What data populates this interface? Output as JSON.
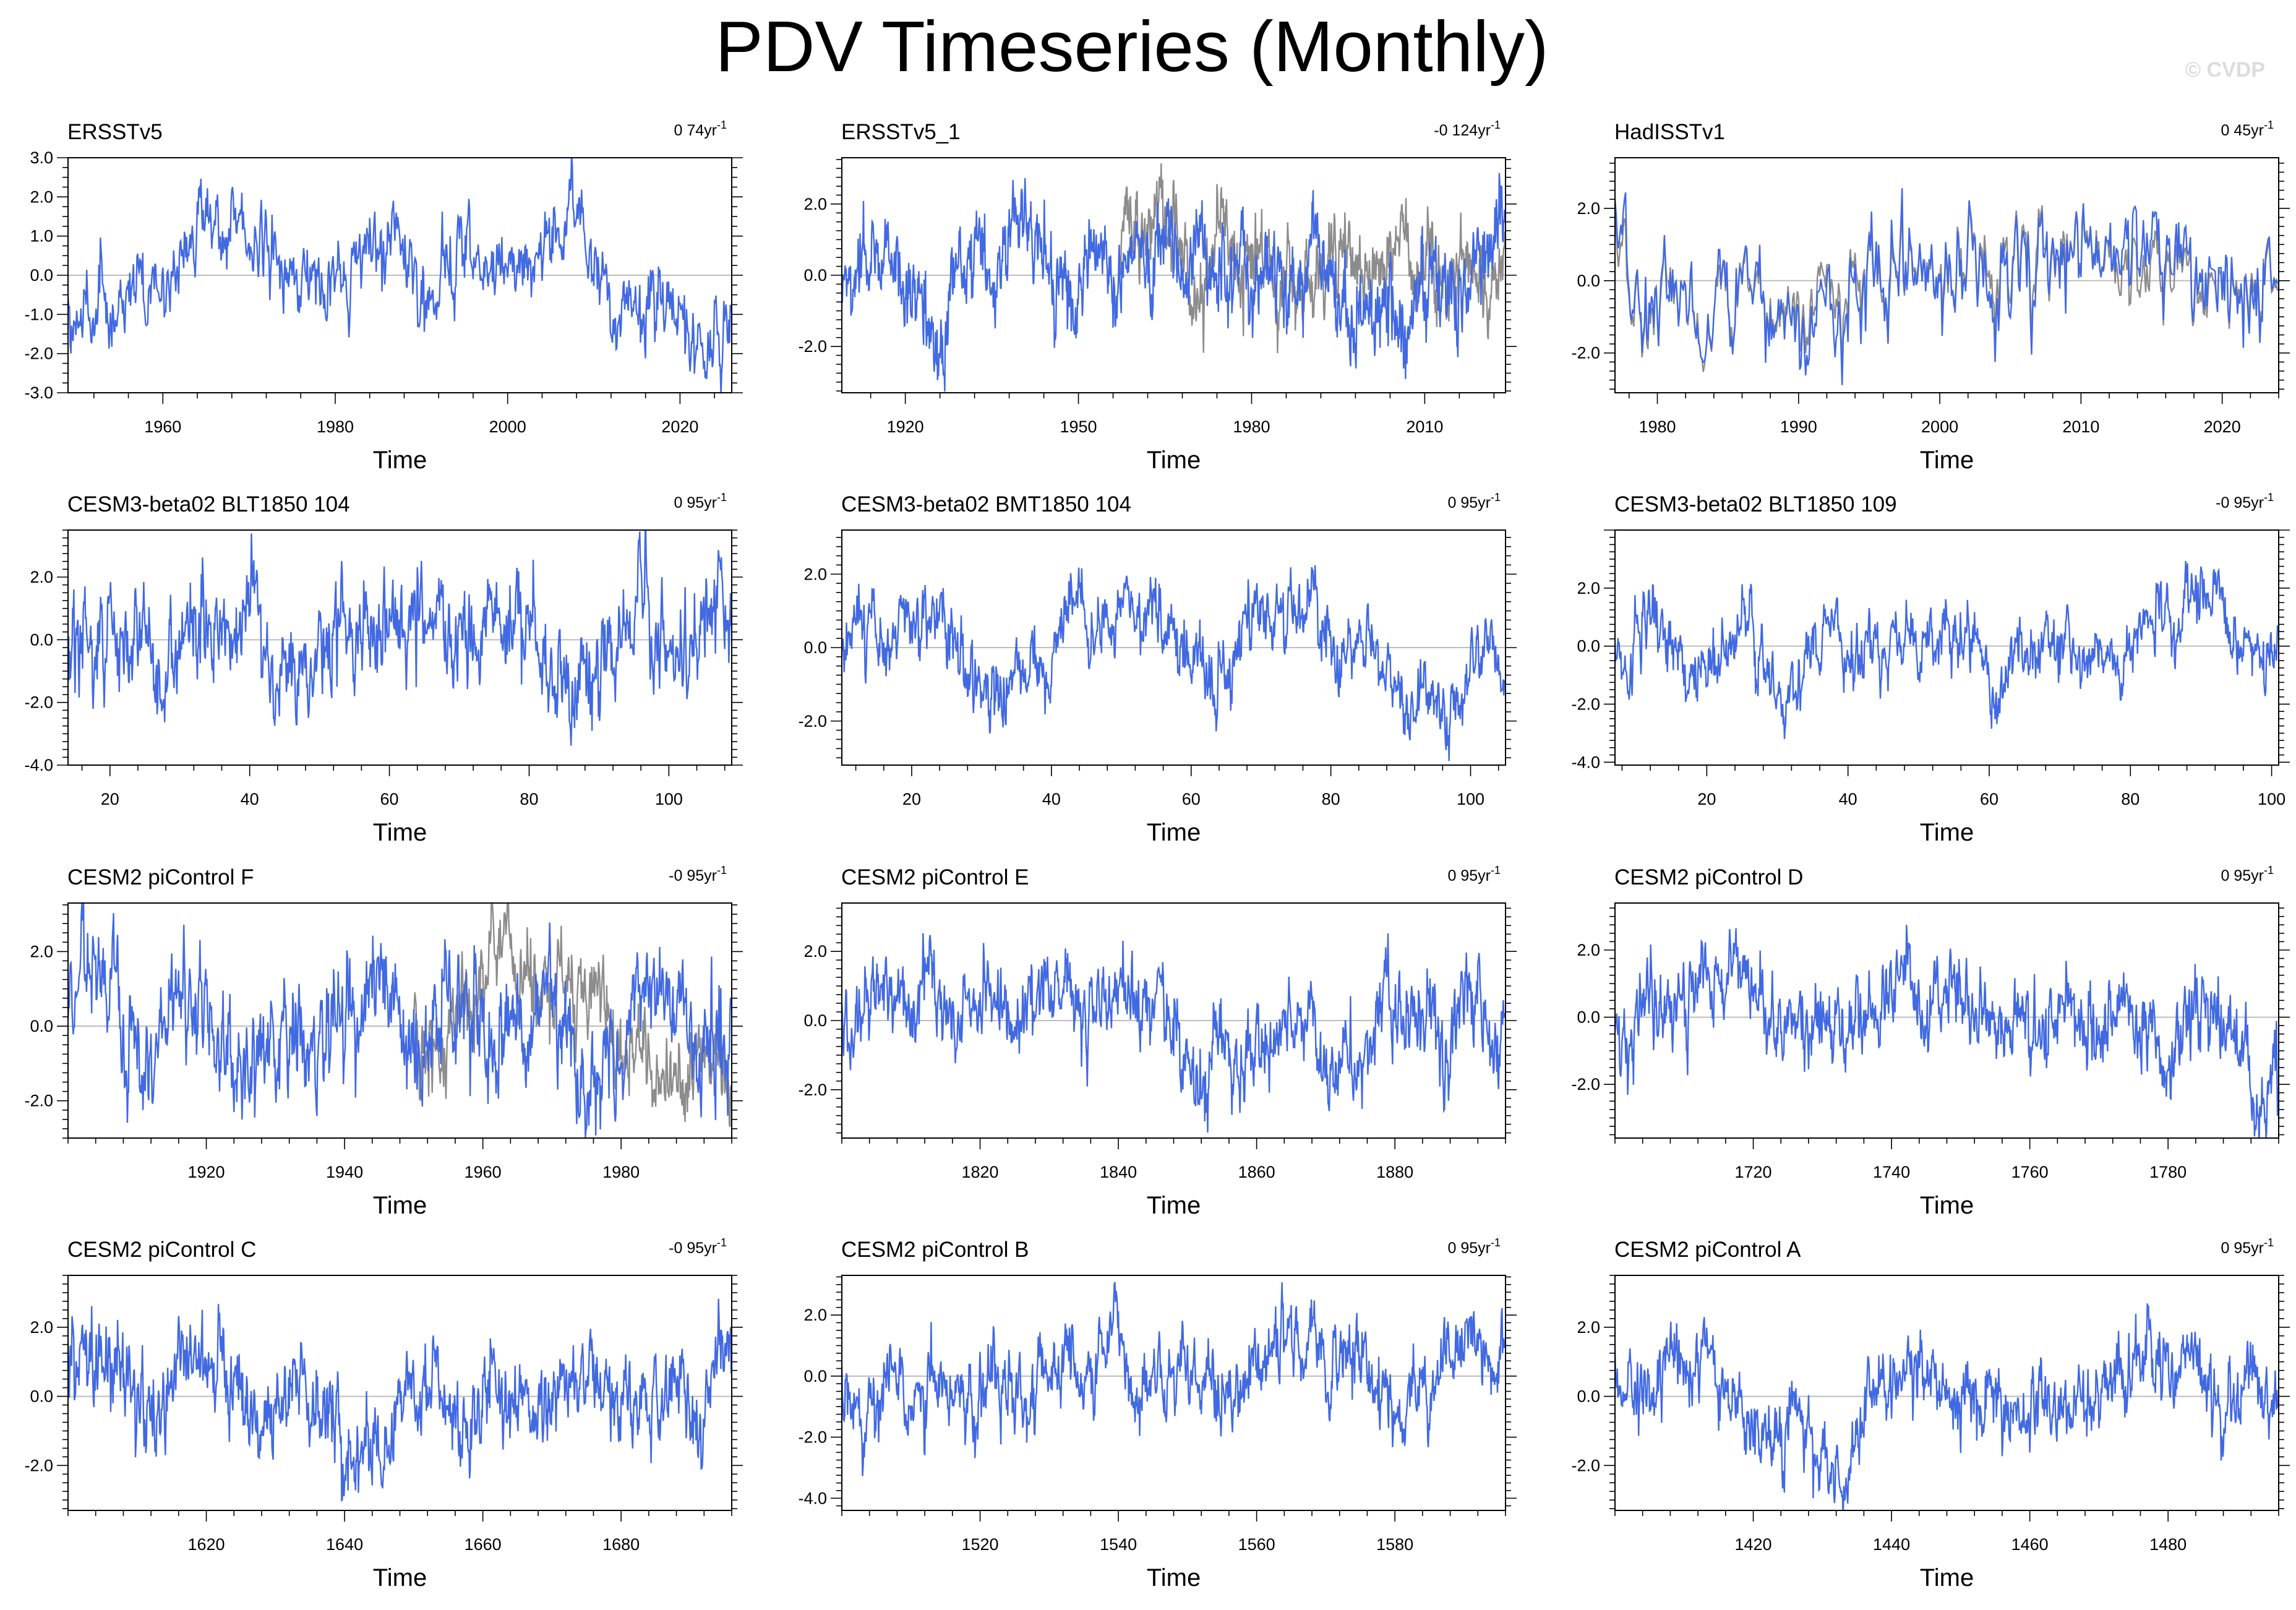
{
  "figure": {
    "title": "PDV Timeseries (Monthly)",
    "credit": "© CVDP",
    "colors": {
      "main_series": "#4169e1",
      "ref_series": "#8c8c8c",
      "zero_line": "#bdbdbd",
      "frame": "#000000"
    }
  },
  "chart_data": [
    {
      "type": "line",
      "title": "ERSSTv5",
      "trend": "0 74yr",
      "xlabel": "Time",
      "xlim": [
        1949,
        2026
      ],
      "ylim": [
        -3,
        3
      ],
      "xticks": [
        1960,
        1980,
        2000,
        2020
      ],
      "xticklabels": [
        "1960",
        "1980",
        "2000",
        "2020"
      ],
      "yticks": [
        -3,
        -2,
        -1,
        0,
        1,
        2,
        3
      ],
      "yticklabels": [
        "-3.0",
        "-2.0",
        "-1.0",
        "0.0",
        "1.0",
        "2.0",
        "3.0"
      ],
      "amplitude": 1.0,
      "ref_series": false,
      "seed": 11
    },
    {
      "type": "line",
      "title": "ERSSTv5_1",
      "trend": "-0 124yr",
      "xlabel": "Time",
      "xlim": [
        1909,
        2024
      ],
      "ylim": [
        -3.3,
        3.3
      ],
      "xticks": [
        1920,
        1950,
        1980,
        2010
      ],
      "xticklabels": [
        "1920",
        "1950",
        "1980",
        "2010"
      ],
      "yticks": [
        -2,
        0,
        2
      ],
      "yticklabels": [
        "-2.0",
        "0.0",
        "2.0"
      ],
      "amplitude": 1.0,
      "ref_series": true,
      "ref_start": 1957,
      "seed": 23
    },
    {
      "type": "line",
      "title": "HadISSTv1",
      "trend": "0 45yr",
      "xlabel": "Time",
      "xlim": [
        1977,
        2024
      ],
      "ylim": [
        -3.1,
        3.4
      ],
      "xticks": [
        1980,
        1990,
        2000,
        2010,
        2020
      ],
      "xticklabels": [
        "1980",
        "1990",
        "2000",
        "2010",
        "2020"
      ],
      "yticks": [
        -2,
        0,
        2
      ],
      "yticklabels": [
        "-2.0",
        "0.0",
        "2.0"
      ],
      "amplitude": 1.0,
      "ref_series": true,
      "ref_start": 1977,
      "seed": 37
    },
    {
      "type": "line",
      "title": "CESM3-beta02 BLT1850 104",
      "trend": "0 95yr",
      "xlabel": "Time",
      "xlim": [
        14,
        109
      ],
      "ylim": [
        -4,
        3.5
      ],
      "xticks": [
        20,
        40,
        60,
        80,
        100
      ],
      "xticklabels": [
        "20",
        "40",
        "60",
        "80",
        "100"
      ],
      "yticks": [
        -4,
        -2,
        0,
        2
      ],
      "yticklabels": [
        "-4.0",
        "-2.0",
        "0.0",
        "2.0"
      ],
      "amplitude": 1.1,
      "ref_series": false,
      "seed": 41
    },
    {
      "type": "line",
      "title": "CESM3-beta02 BMT1850 104",
      "trend": "0 95yr",
      "xlabel": "Time",
      "xlim": [
        10,
        105
      ],
      "ylim": [
        -3.2,
        3.2
      ],
      "xticks": [
        20,
        40,
        60,
        80,
        100
      ],
      "xticklabels": [
        "20",
        "40",
        "60",
        "80",
        "100"
      ],
      "yticks": [
        -2,
        0,
        2
      ],
      "yticklabels": [
        "-2.0",
        "0.0",
        "2.0"
      ],
      "amplitude": 1.0,
      "ref_series": false,
      "seed": 53
    },
    {
      "type": "line",
      "title": "CESM3-beta02 BLT1850 109",
      "trend": "-0 95yr",
      "xlabel": "Time",
      "xlim": [
        7,
        101
      ],
      "ylim": [
        -4.1,
        4
      ],
      "xticks": [
        20,
        40,
        60,
        80,
        100
      ],
      "xticklabels": [
        "20",
        "40",
        "60",
        "80",
        "100"
      ],
      "yticks": [
        -4,
        -2,
        0,
        2
      ],
      "yticklabels": [
        "-4.0",
        "-2.0",
        "0.0",
        "2.0"
      ],
      "amplitude": 1.0,
      "ref_series": false,
      "seed": 67
    },
    {
      "type": "line",
      "title": "CESM2 piControl F",
      "trend": "-0 95yr",
      "xlabel": "Time",
      "xlim": [
        1900,
        1996
      ],
      "ylim": [
        -3,
        3.3
      ],
      "xticks": [
        1920,
        1940,
        1960,
        1980
      ],
      "xticklabels": [
        "1920",
        "1940",
        "1960",
        "1980"
      ],
      "yticks": [
        -2,
        0,
        2
      ],
      "yticklabels": [
        "-2.0",
        "0.0",
        "2.0"
      ],
      "amplitude": 1.1,
      "ref_series": true,
      "ref_start": 1950,
      "seed": 79
    },
    {
      "type": "line",
      "title": "CESM2 piControl E",
      "trend": "0 95yr",
      "xlabel": "Time",
      "xlim": [
        1800,
        1896
      ],
      "ylim": [
        -3.4,
        3.4
      ],
      "xticks": [
        1820,
        1840,
        1860,
        1880
      ],
      "xticklabels": [
        "1820",
        "1840",
        "1860",
        "1880"
      ],
      "yticks": [
        -2,
        0,
        2
      ],
      "yticklabels": [
        "-2.0",
        "0.0",
        "2.0"
      ],
      "amplitude": 1.0,
      "ref_series": false,
      "seed": 83
    },
    {
      "type": "line",
      "title": "CESM2 piControl D",
      "trend": "0 95yr",
      "xlabel": "Time",
      "xlim": [
        1700,
        1796
      ],
      "ylim": [
        -3.6,
        3.4
      ],
      "xticks": [
        1720,
        1740,
        1760,
        1780
      ],
      "xticklabels": [
        "1720",
        "1740",
        "1760",
        "1780"
      ],
      "yticks": [
        -2,
        0,
        2
      ],
      "yticklabels": [
        "-2.0",
        "0.0",
        "2.0"
      ],
      "amplitude": 1.0,
      "ref_series": false,
      "seed": 97
    },
    {
      "type": "line",
      "title": "CESM2 piControl C",
      "trend": "-0 95yr",
      "xlabel": "Time",
      "xlim": [
        1600,
        1696
      ],
      "ylim": [
        -3.3,
        3.5
      ],
      "xticks": [
        1620,
        1640,
        1660,
        1680
      ],
      "xticklabels": [
        "1620",
        "1640",
        "1660",
        "1680"
      ],
      "yticks": [
        -2,
        0,
        2
      ],
      "yticklabels": [
        "-2.0",
        "0.0",
        "2.0"
      ],
      "amplitude": 1.0,
      "ref_series": false,
      "seed": 101
    },
    {
      "type": "line",
      "title": "CESM2 piControl B",
      "trend": "0 95yr",
      "xlabel": "Time",
      "xlim": [
        1500,
        1596
      ],
      "ylim": [
        -4.4,
        3.3
      ],
      "xticks": [
        1520,
        1540,
        1560,
        1580
      ],
      "xticklabels": [
        "1520",
        "1540",
        "1560",
        "1580"
      ],
      "yticks": [
        -4,
        -2,
        0,
        2
      ],
      "yticklabels": [
        "-4.0",
        "-2.0",
        "0.0",
        "2.0"
      ],
      "amplitude": 1.0,
      "ref_series": false,
      "seed": 113
    },
    {
      "type": "line",
      "title": "CESM2 piControl A",
      "trend": "0 95yr",
      "xlabel": "Time",
      "xlim": [
        1400,
        1496
      ],
      "ylim": [
        -3.3,
        3.5
      ],
      "xticks": [
        1420,
        1440,
        1460,
        1480
      ],
      "xticklabels": [
        "1420",
        "1440",
        "1460",
        "1480"
      ],
      "yticks": [
        -2,
        0,
        2
      ],
      "yticklabels": [
        "-2.0",
        "0.0",
        "2.0"
      ],
      "amplitude": 1.0,
      "ref_series": false,
      "seed": 127
    }
  ]
}
